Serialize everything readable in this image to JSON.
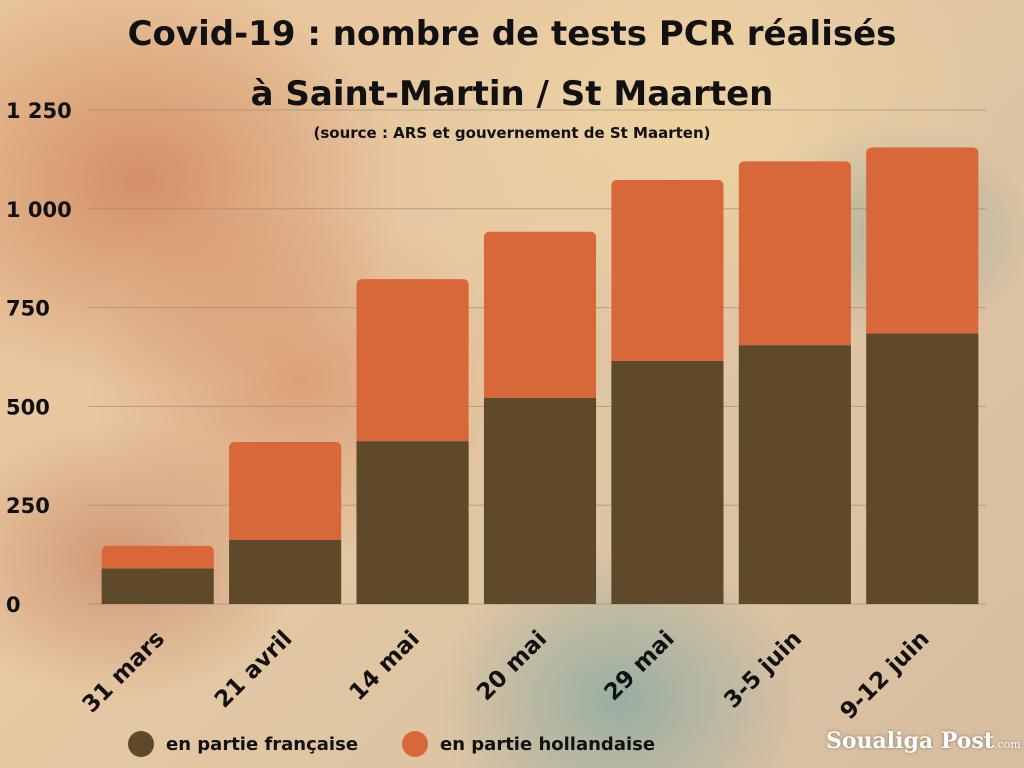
{
  "title_line1": "Covid-19 : nombre de tests PCR réalisés",
  "title_line2": "à Saint-Martin / St Maarten",
  "subtitle": "(source : ARS et gouvernement de St Maarten)",
  "brand": {
    "name": "Soualiga Post",
    "suffix": ".com"
  },
  "colors": {
    "french": "#5e4a2a",
    "dutch": "#d8683a",
    "grid": "#9a8f80",
    "text": "#111111"
  },
  "chart_data": {
    "type": "bar",
    "stacked": true,
    "categories": [
      "31 mars",
      "21 avril",
      "14 mai",
      "20 mai",
      "29 mai",
      "3-5 juin",
      "9-12  juin"
    ],
    "series": [
      {
        "name": "en partie française",
        "values": [
          90,
          162,
          412,
          522,
          615,
          655,
          685
        ]
      },
      {
        "name": "en partie hollandaise",
        "values": [
          57,
          248,
          410,
          420,
          458,
          465,
          470
        ]
      }
    ],
    "ylim": [
      0,
      1250
    ],
    "yticks": [
      0,
      250,
      500,
      750,
      1000,
      1250
    ],
    "ytick_labels": [
      "0",
      "250",
      "500",
      "750",
      "1 000",
      "1 250"
    ],
    "grid": true,
    "legend": "bottom"
  }
}
